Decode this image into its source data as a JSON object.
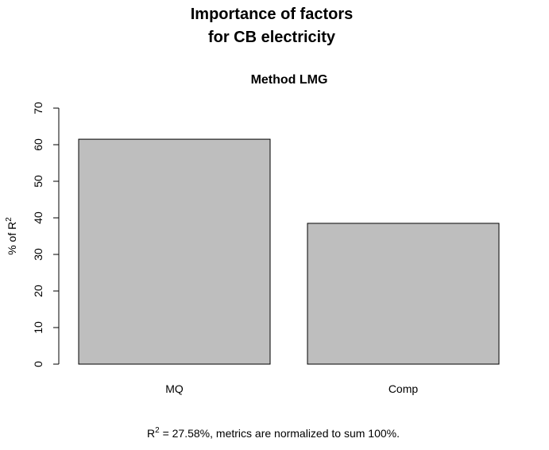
{
  "chart_data": {
    "type": "bar",
    "title_line1": "Importance of factors",
    "title_line2": "for CB electricity",
    "subtitle": "Method LMG",
    "ylabel": "% of R",
    "ylabel_superscript": "2",
    "xlabel": "",
    "categories": [
      "MQ",
      "Comp"
    ],
    "values": [
      61.5,
      38.5
    ],
    "ylim": [
      0,
      70
    ],
    "yticks": [
      "0",
      "10",
      "20",
      "30",
      "40",
      "50",
      "60",
      "70"
    ],
    "bar_color": "#bebebe",
    "grid": false,
    "legend": "none",
    "footnote_prefix": "R",
    "footnote_superscript": "2",
    "footnote_text": " = 27.58%, metrics are normalized to sum 100%."
  }
}
